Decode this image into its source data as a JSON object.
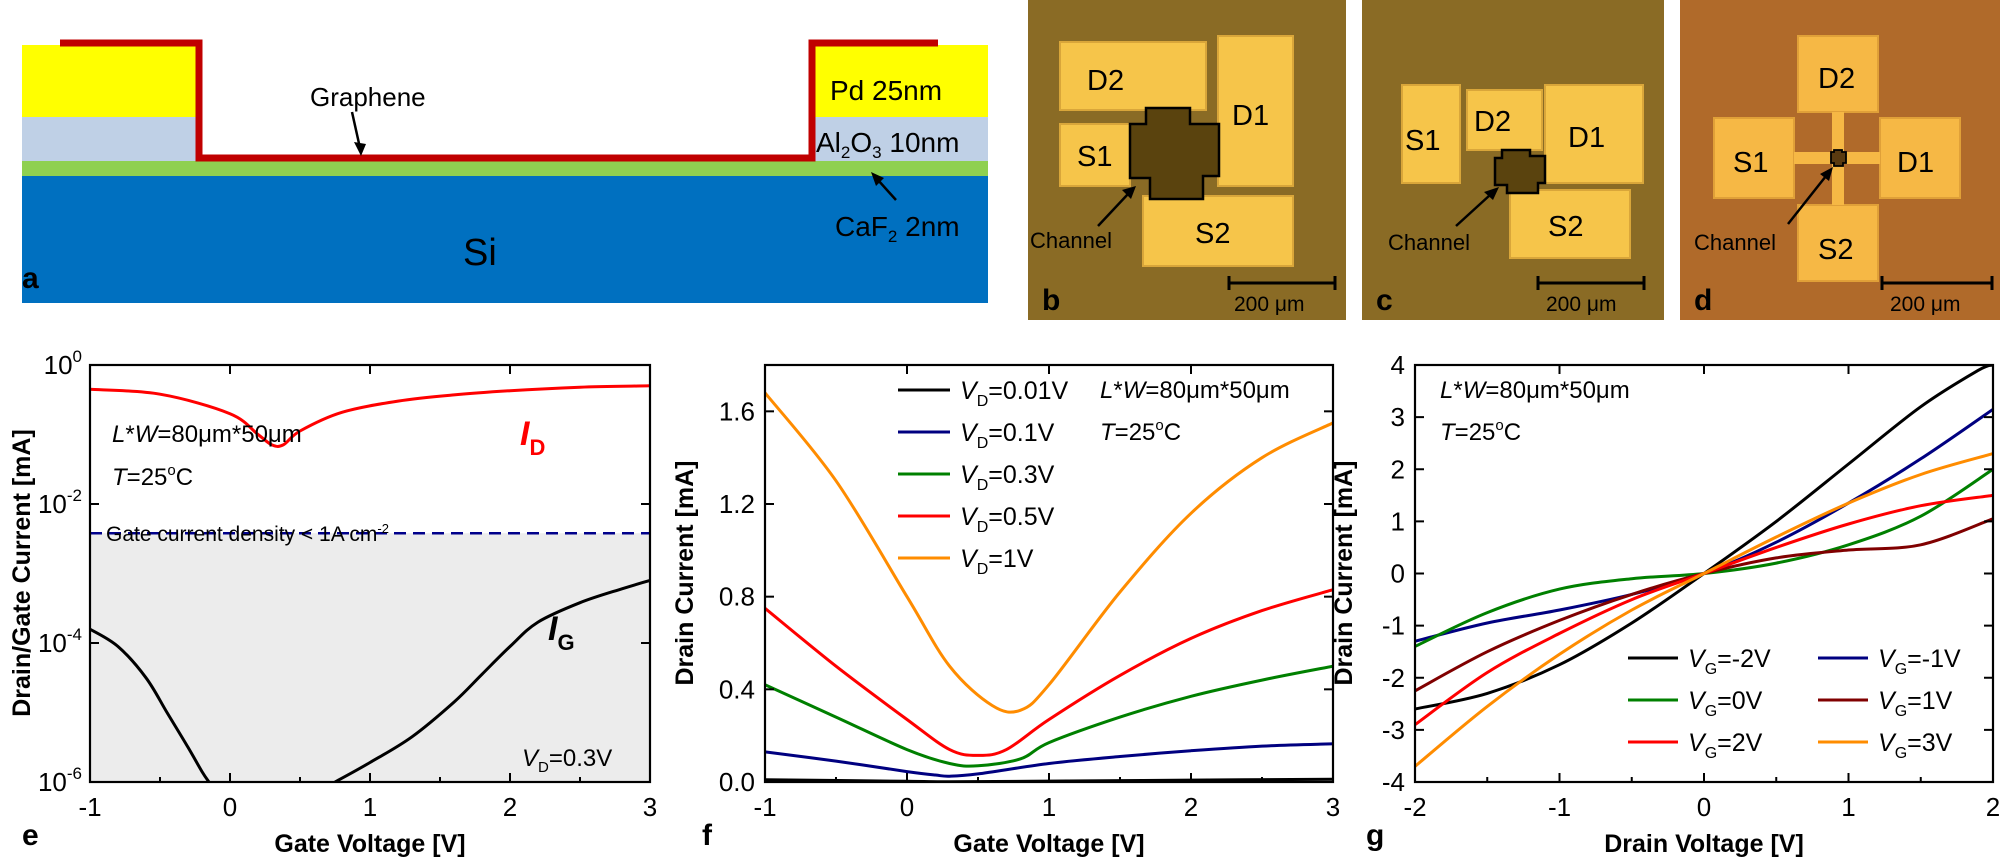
{
  "panel_a": {
    "letter": "a",
    "graphene_label": "Graphene",
    "pd_label": "Pd 25nm",
    "al_label_main": "Al",
    "al_label_sub": "2",
    "al_label_o": "O",
    "al_label_sub2": "3",
    "al_label_rest": " 10nm",
    "caf_label_main": "CaF",
    "caf_label_sub": "2",
    "caf_label_rest": " 2nm",
    "si_label": "Si",
    "colors": {
      "pd": "#ffff00",
      "al2o3": "#bfd0e6",
      "caf2": "#8fd051",
      "si": "#0070c0",
      "graphene": "#c00000"
    }
  },
  "micrographs": [
    {
      "letter": "b",
      "pads": [
        "D2",
        "D1",
        "S1",
        "S2"
      ],
      "channel": "Channel",
      "scale": "200 μm",
      "bg": "#8a6b25"
    },
    {
      "letter": "c",
      "pads": [
        "S1",
        "D2",
        "D1",
        "S2"
      ],
      "channel": "Channel",
      "scale": "200 μm",
      "bg": "#8a6b25"
    },
    {
      "letter": "d",
      "pads": [
        "D2",
        "S1",
        "D1",
        "S2"
      ],
      "channel": "Channel",
      "scale": "200 μm",
      "bg": "#b06a2a"
    }
  ],
  "panel_e": {
    "letter": "e",
    "chart_data": {
      "type": "line",
      "xlabel": "Gate Voltage [V]",
      "ylabel": "Drain/Gate Current [mA]",
      "yscale": "log",
      "xlim": [
        -1,
        3
      ],
      "ylim_exp": [
        -6,
        0
      ],
      "xticks": [
        "-1",
        "0",
        "1",
        "2",
        "3"
      ],
      "yticks": [
        {
          "base": "10",
          "exp": "0"
        },
        {
          "base": "10",
          "exp": "-2"
        },
        {
          "base": "10",
          "exp": "-4"
        },
        {
          "base": "10",
          "exp": "-6"
        }
      ],
      "series": [
        {
          "name": "I_D",
          "label_main": "I",
          "label_sub": "D",
          "color": "#ff0000",
          "x": [
            -1,
            -0.5,
            0,
            0.2,
            0.3,
            0.38,
            0.5,
            0.8,
            1.2,
            1.6,
            2.0,
            2.5,
            3.0
          ],
          "log10y": [
            -0.35,
            -0.42,
            -0.7,
            -1.0,
            -1.15,
            -1.15,
            -0.95,
            -0.68,
            -0.52,
            -0.43,
            -0.37,
            -0.32,
            -0.3
          ]
        },
        {
          "name": "I_G_left",
          "color": "#000000",
          "x": [
            -1,
            -0.8,
            -0.6,
            -0.45,
            -0.3,
            -0.2,
            -0.15
          ],
          "log10y": [
            -3.8,
            -4.05,
            -4.5,
            -5.0,
            -5.5,
            -5.85,
            -6.0
          ]
        },
        {
          "name": "I_G_right",
          "label_main": "I",
          "label_sub": "G",
          "color": "#000000",
          "x": [
            0.75,
            1.0,
            1.3,
            1.6,
            1.8,
            2.0,
            2.2,
            2.5,
            2.8,
            3.0
          ],
          "log10y": [
            -6.0,
            -5.72,
            -5.35,
            -4.85,
            -4.45,
            -4.05,
            -3.7,
            -3.42,
            -3.22,
            -3.1
          ]
        }
      ],
      "threshold_log10y": -2.42,
      "threshold_color": "#00008b",
      "shade_color": "#ececec",
      "annotations": {
        "dims_pre": "L",
        "dims_mid": "*",
        "dims_w": "W",
        "dims_val": "=80μm*50μm",
        "temp_t": "T",
        "temp_val": "=25",
        "temp_sup": "o",
        "temp_c": "C",
        "gate_density": "Gate current density < 1A cm",
        "gate_density_sup": "-2",
        "vd_v": "V",
        "vd_sub": "D",
        "vd_val": "=0.3V"
      }
    }
  },
  "panel_f": {
    "letter": "f",
    "chart_data": {
      "type": "line",
      "xlabel": "Gate Voltage [V]",
      "ylabel": "Drain Current [mA]",
      "xlim": [
        -1,
        3
      ],
      "ylim": [
        0,
        1.8
      ],
      "xticks": [
        "-1",
        "0",
        "1",
        "2",
        "3"
      ],
      "yticks": [
        "0.0",
        "0.4",
        "0.8",
        "1.2",
        "1.6"
      ],
      "series": [
        {
          "name": "VD=0.01V",
          "label_v": "V",
          "label_sub": "D",
          "label_val": "=0.01V",
          "color": "#000000",
          "x": [
            -1,
            0,
            0.3,
            1,
            2,
            3
          ],
          "y": [
            0.01,
            0.003,
            0.001,
            0.004,
            0.008,
            0.012
          ]
        },
        {
          "name": "VD=0.1V",
          "label_v": "V",
          "label_sub": "D",
          "label_val": "=0.1V",
          "color": "#000080",
          "x": [
            -1,
            -0.5,
            0,
            0.2,
            0.3,
            0.5,
            1,
            1.5,
            2,
            2.5,
            3
          ],
          "y": [
            0.13,
            0.09,
            0.045,
            0.03,
            0.025,
            0.035,
            0.08,
            0.11,
            0.135,
            0.155,
            0.165
          ]
        },
        {
          "name": "VD=0.3V",
          "label_v": "V",
          "label_sub": "D",
          "label_val": "=0.3V",
          "color": "#008000",
          "x": [
            -1,
            -0.5,
            0,
            0.3,
            0.5,
            0.8,
            1,
            1.5,
            2,
            2.5,
            3
          ],
          "y": [
            0.42,
            0.28,
            0.14,
            0.08,
            0.07,
            0.1,
            0.17,
            0.28,
            0.37,
            0.44,
            0.5
          ]
        },
        {
          "name": "VD=0.5V",
          "label_v": "V",
          "label_sub": "D",
          "label_val": "=0.5V",
          "color": "#ff0000",
          "x": [
            -1,
            -0.5,
            0,
            0.3,
            0.5,
            0.7,
            1,
            1.5,
            2,
            2.5,
            3
          ],
          "y": [
            0.75,
            0.5,
            0.27,
            0.14,
            0.115,
            0.14,
            0.27,
            0.46,
            0.62,
            0.74,
            0.83
          ]
        },
        {
          "name": "VD=1V",
          "label_v": "V",
          "label_sub": "D",
          "label_val": "=1V",
          "color": "#ff8c00",
          "x": [
            -1,
            -0.5,
            0,
            0.3,
            0.6,
            0.8,
            1,
            1.5,
            2,
            2.5,
            3
          ],
          "y": [
            1.68,
            1.3,
            0.8,
            0.5,
            0.33,
            0.31,
            0.42,
            0.82,
            1.16,
            1.4,
            1.55
          ]
        }
      ],
      "annotations": {
        "dims_pre": "L",
        "dims_mid": "*",
        "dims_w": "W",
        "dims_val": "=80μm*50μm",
        "temp_t": "T",
        "temp_val": "=25",
        "temp_sup": "o",
        "temp_c": "C"
      }
    }
  },
  "panel_g": {
    "letter": "g",
    "chart_data": {
      "type": "line",
      "xlabel": "Drain Voltage [V]",
      "ylabel": "Drain Current [mA]",
      "xlim": [
        -2,
        2
      ],
      "ylim": [
        -4,
        4
      ],
      "xticks": [
        "-2",
        "-1",
        "0",
        "1",
        "2"
      ],
      "yticks": [
        "-4",
        "-3",
        "-2",
        "-1",
        "0",
        "1",
        "2",
        "3",
        "4"
      ],
      "series": [
        {
          "name": "VG=-2V",
          "label_v": "V",
          "label_sub": "G",
          "label_val": "=-2V",
          "color": "#000000",
          "x": [
            -2,
            -1.5,
            -1,
            -0.5,
            0,
            0.5,
            1,
            1.5,
            1.9,
            2.0
          ],
          "y": [
            -2.6,
            -2.3,
            -1.75,
            -0.95,
            0,
            1.0,
            2.1,
            3.2,
            3.9,
            4.0
          ]
        },
        {
          "name": "VG=-1V",
          "label_v": "V",
          "label_sub": "G",
          "label_val": "=-1V",
          "color": "#000080",
          "x": [
            -2,
            -1.5,
            -1,
            -0.5,
            0,
            0.5,
            1,
            1.5,
            2
          ],
          "y": [
            -1.3,
            -0.95,
            -0.7,
            -0.4,
            0,
            0.6,
            1.35,
            2.2,
            3.15
          ]
        },
        {
          "name": "VG=0V",
          "label_v": "V",
          "label_sub": "G",
          "label_val": "=0V",
          "color": "#008000",
          "x": [
            -2,
            -1.5,
            -1,
            -0.5,
            0,
            0.5,
            1,
            1.5,
            2
          ],
          "y": [
            -1.4,
            -0.75,
            -0.3,
            -0.1,
            0,
            0.2,
            0.55,
            1.1,
            2.0
          ]
        },
        {
          "name": "VG=1V",
          "label_v": "V",
          "label_sub": "G",
          "label_val": "=1V",
          "color": "#800000",
          "x": [
            -2,
            -1.5,
            -1,
            -0.5,
            0,
            0.5,
            1,
            1.5,
            2
          ],
          "y": [
            -2.25,
            -1.5,
            -0.9,
            -0.4,
            0,
            0.3,
            0.45,
            0.55,
            1.05
          ]
        },
        {
          "name": "VG=2V",
          "label_v": "V",
          "label_sub": "G",
          "label_val": "=2V",
          "color": "#ff0000",
          "x": [
            -2,
            -1.5,
            -1,
            -0.5,
            0,
            0.5,
            1,
            1.5,
            2
          ],
          "y": [
            -2.9,
            -1.9,
            -1.15,
            -0.5,
            0,
            0.5,
            0.95,
            1.3,
            1.5
          ]
        },
        {
          "name": "VG=3V",
          "label_v": "V",
          "label_sub": "G",
          "label_val": "=3V",
          "color": "#ff8c00",
          "x": [
            -2,
            -1.5,
            -1,
            -0.5,
            0,
            0.5,
            1,
            1.5,
            2
          ],
          "y": [
            -3.7,
            -2.55,
            -1.55,
            -0.7,
            0,
            0.7,
            1.35,
            1.9,
            2.3
          ]
        }
      ],
      "annotations": {
        "dims_pre": "L",
        "dims_mid": "*",
        "dims_w": "W",
        "dims_val": "=80μm*50μm",
        "temp_t": "T",
        "temp_val": "=25",
        "temp_sup": "o",
        "temp_c": "C"
      }
    }
  }
}
